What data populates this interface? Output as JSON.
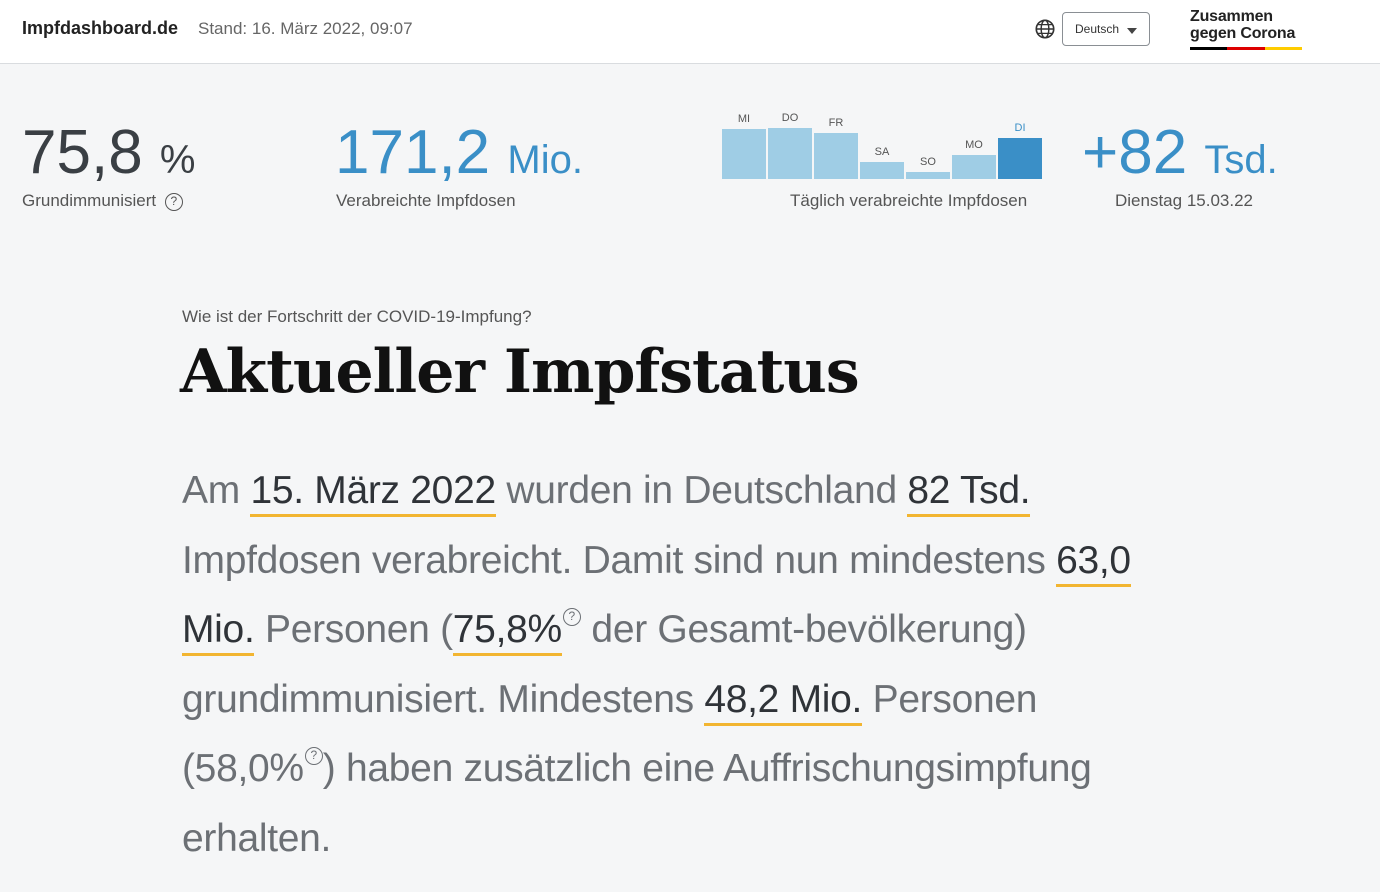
{
  "header": {
    "site_name": "Impfdashboard.de",
    "stand": "Stand: 16. März 2022, 09:07",
    "language": "Deutsch",
    "logo_line1": "Zusammen",
    "logo_line2": "gegen Corona"
  },
  "kpis": {
    "grundimmunisiert": {
      "value": "75,8",
      "unit": "%",
      "label": "Grundimmunisiert",
      "help": "?"
    },
    "doses": {
      "value": "171,2",
      "unit": "Mio.",
      "label": "Verabreichte Impfdosen"
    },
    "daily": {
      "value": "+82",
      "unit": "Tsd.",
      "label": "Dienstag 15.03.22"
    }
  },
  "chart_data": {
    "type": "bar",
    "categories": [
      "MI",
      "DO",
      "FR",
      "SA",
      "SO",
      "MO",
      "DI"
    ],
    "values": [
      100,
      103,
      93,
      35,
      14,
      49,
      82
    ],
    "highlight_index": 6,
    "ylim": [
      0,
      105
    ],
    "xlabel": "Täglich verabreichte Impfdosen",
    "grid": false
  },
  "section": {
    "kicker": "Wie ist der Fortschritt der COVID-19-Impfung?",
    "title": "Aktueller Impfstatus",
    "t1": "Am ",
    "h_date": "15. März 2022",
    "t2": " wurden in Deutschland ",
    "h_doses": "82 Tsd.",
    "t3": " Impfdosen verabreicht. Damit sind nun mindestens ",
    "h_grund_count": "63,0 Mio.",
    "t4": " Personen (",
    "h_grund_pct": "75,8%",
    "t5": " der Gesamt-bevölkerung) grundimmunisiert. Mindestens ",
    "h_booster_count": "48,2 Mio.",
    "t6": " Personen (58,0%",
    "t7": ") haben zusätzlich eine Auffrischungsimpfung erhalten.",
    "help": "?"
  },
  "colors": {
    "accent_blue": "#3a8fc7",
    "bar_light": "#9fcde5",
    "underline_yellow": "#f2b531",
    "flag_black": "#000000",
    "flag_red": "#dd0000",
    "flag_gold": "#ffcc00"
  },
  "icons": {
    "language": "globe-icon",
    "dropdown": "chevron-down-icon",
    "help": "question-circle-icon"
  }
}
